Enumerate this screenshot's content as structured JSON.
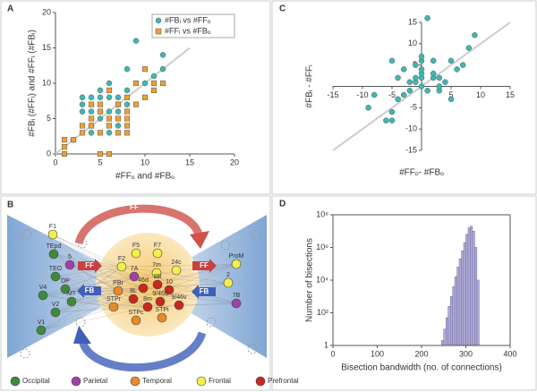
{
  "chart_data": [
    {
      "type": "scatter",
      "label": "A",
      "xlabel": "#FFₒ and #FBₒ",
      "ylabel": "#FBᵢ (#FFᵢ) and #FFᵢ (#FBᵢ)",
      "xlim": [
        0,
        20
      ],
      "ylim": [
        0,
        20
      ],
      "xticks": [
        0,
        5,
        10,
        15,
        20
      ],
      "yticks": [
        0,
        5,
        10,
        15,
        20
      ],
      "reference_line": true,
      "legend": "upper right",
      "series": [
        {
          "name": "#FBᵢ vs #FFₒ",
          "color": "#3fb8b2",
          "marker": "circle",
          "x": [
            2,
            3,
            3,
            3,
            4,
            4,
            4,
            5,
            5,
            5,
            5,
            6,
            6,
            6,
            7,
            7,
            7,
            8,
            8,
            9,
            10,
            11,
            12,
            12,
            8,
            7,
            4,
            6
          ],
          "values": [
            2,
            6,
            7,
            8,
            3,
            6,
            8,
            5,
            6,
            8,
            9,
            6,
            10,
            3,
            6,
            7,
            8,
            7,
            9,
            16,
            10,
            11,
            14,
            12,
            12,
            4,
            4,
            8
          ]
        },
        {
          "name": "#FFᵢ vs #FBₒ",
          "color": "#f0a030",
          "marker": "square",
          "x": [
            1,
            1,
            1,
            2,
            3,
            3,
            4,
            4,
            4,
            5,
            5,
            5,
            6,
            6,
            7,
            7,
            7,
            8,
            8,
            8,
            8,
            9,
            9,
            10,
            10,
            11,
            11,
            12,
            6,
            5,
            8,
            6
          ],
          "values": [
            0,
            1,
            2,
            2,
            3,
            4,
            4,
            5,
            7,
            6,
            7,
            3,
            4,
            5,
            5,
            3,
            7,
            4,
            5,
            6,
            8,
            7,
            10,
            8,
            12,
            9,
            10,
            10,
            0,
            0,
            3,
            9
          ]
        }
      ]
    },
    {
      "type": "scatter",
      "label": "C",
      "xlabel": "#FFₒ- #FBₒ",
      "ylabel": "#FBᵢ - #FFᵢ",
      "xlim": [
        -15,
        15
      ],
      "ylim": [
        -15,
        15
      ],
      "xticks": [
        -15,
        -10,
        -5,
        5,
        10,
        15
      ],
      "yticks": [
        -15,
        -10,
        -5,
        5,
        10,
        15
      ],
      "axes_at_zero": true,
      "reference_line": true,
      "series": [
        {
          "color": "#3fb8b2",
          "marker": "circle",
          "x": [
            -9,
            -8,
            -6,
            -5,
            -5,
            -5,
            -4,
            -4,
            -3,
            -2,
            -2,
            -1,
            -1,
            -1,
            0,
            0,
            0,
            0,
            0,
            0,
            1,
            2,
            2,
            2,
            3,
            3,
            3,
            4,
            5,
            5,
            6,
            7,
            8,
            9,
            1,
            -3
          ],
          "values": [
            -5,
            -2,
            -8,
            -6,
            -8,
            6,
            -3,
            2,
            -2,
            -1,
            1,
            1,
            2,
            5,
            0,
            2,
            3,
            4,
            6,
            7,
            16,
            6,
            2,
            3,
            -1,
            0,
            2,
            1,
            -3,
            6,
            4,
            5,
            9,
            12,
            -1,
            4
          ]
        }
      ]
    },
    {
      "type": "histogram",
      "label": "D",
      "xlabel": "Bisection bandwidth (no. of connections)",
      "ylabel": "Number of bisections",
      "xlim": [
        0,
        400
      ],
      "ylim": [
        1,
        100000000
      ],
      "log_y": true,
      "xticks": [
        0,
        100,
        200,
        300,
        400
      ],
      "yticks": [
        1,
        {
          "value": 100,
          "label": "10²"
        },
        {
          "value": 10000,
          "label": "10⁴"
        },
        {
          "value": 1000000,
          "label": "10⁶"
        },
        {
          "value": 100000000,
          "label": "10⁸"
        }
      ],
      "color": "#b2aed6",
      "edge_color": "#6a64a0",
      "bins": [
        245,
        250,
        255,
        260,
        265,
        270,
        275,
        280,
        285,
        290,
        295,
        300,
        305,
        310,
        315,
        320,
        325,
        330
      ],
      "values": [
        2,
        10,
        50,
        250,
        1000,
        4000,
        16000,
        63000,
        200000,
        630000,
        2000000,
        6300000,
        16000000,
        20000000,
        10000000,
        1000000,
        10000
      ]
    }
  ],
  "diagram": {
    "label": "B",
    "arrows": [
      "FF",
      "FF",
      "FF",
      "FB",
      "FB",
      "FB"
    ],
    "legend": [
      {
        "name": "Occipital",
        "color": "#3f8a3a"
      },
      {
        "name": "Parietal",
        "color": "#a040a8"
      },
      {
        "name": "Temporal",
        "color": "#e88a2a"
      },
      {
        "name": "Frontal",
        "color": "#f2f048"
      },
      {
        "name": "Prefrontal",
        "color": "#c8281e"
      }
    ],
    "nodes": [
      {
        "label": "F1",
        "region": 3
      },
      {
        "label": "5",
        "region": 1
      },
      {
        "label": "TEpd",
        "region": 0
      },
      {
        "label": "TEO",
        "region": 0
      },
      {
        "label": "DP",
        "region": 0
      },
      {
        "label": "V4",
        "region": 0
      },
      {
        "label": "MT",
        "region": 0
      },
      {
        "label": "V2",
        "region": 0
      },
      {
        "label": "V1",
        "region": 0
      },
      {
        "label": "F5",
        "region": 3
      },
      {
        "label": "F7",
        "region": 3
      },
      {
        "label": "F2",
        "region": 3
      },
      {
        "label": "7m",
        "region": 3
      },
      {
        "label": "7A",
        "region": 1
      },
      {
        "label": "24c",
        "region": 3
      },
      {
        "label": "8B",
        "region": 4
      },
      {
        "label": "46d",
        "region": 4
      },
      {
        "label": "10",
        "region": 4
      },
      {
        "label": "PBr",
        "region": 2
      },
      {
        "label": "8L",
        "region": 4
      },
      {
        "label": "9/46d",
        "region": 4
      },
      {
        "label": "8m",
        "region": 4
      },
      {
        "label": "9/46v",
        "region": 4
      },
      {
        "label": "STPr",
        "region": 2
      },
      {
        "label": "STPc",
        "region": 2
      },
      {
        "label": "STPi",
        "region": 2
      },
      {
        "label": "ProM",
        "region": 3
      },
      {
        "label": "2",
        "region": 3
      },
      {
        "label": "7B",
        "region": 1
      }
    ]
  }
}
